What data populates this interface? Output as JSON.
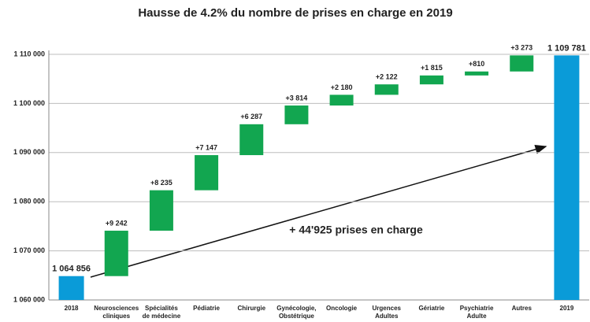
{
  "chart_data": {
    "type": "waterfall",
    "title": "Hausse de 4.2% du nombre de prises en charge en 2019",
    "categories": [
      "2018",
      "Neurosciences\ncliniques",
      "Spécialités\nde médecine",
      "Pédiatrie",
      "Chirurgie",
      "Gynécologie,\nObstétrique",
      "Oncologie",
      "Urgences\nAdultes",
      "Gériatrie",
      "Psychiatrie\nAdulte",
      "Autres",
      "2019"
    ],
    "values": [
      1064856,
      9242,
      8235,
      7147,
      6287,
      3814,
      2180,
      2122,
      1815,
      810,
      3273,
      1109781
    ],
    "value_labels": [
      "1 064 856",
      "+9 242",
      "+8 235",
      "+7 147",
      "+6 287",
      "+3 814",
      "+2 180",
      "+2 122",
      "+1 815",
      "+810",
      "+3 273",
      "1 109 781"
    ],
    "total_color": "#0a9bd8",
    "increase_color": "#12a650",
    "ylim": [
      1060000,
      1110000
    ],
    "yticks": [
      {
        "value": 1060000,
        "label": "1 060 000"
      },
      {
        "value": 1070000,
        "label": "1 070 000"
      },
      {
        "value": 1080000,
        "label": "1 080 000"
      },
      {
        "value": 1090000,
        "label": "1 090 000"
      },
      {
        "value": 1100000,
        "label": "1 100 000"
      },
      {
        "value": 1110000,
        "label": "1 110 000"
      }
    ],
    "grid": true,
    "annotation": "+ 44'925 prises en charge"
  }
}
